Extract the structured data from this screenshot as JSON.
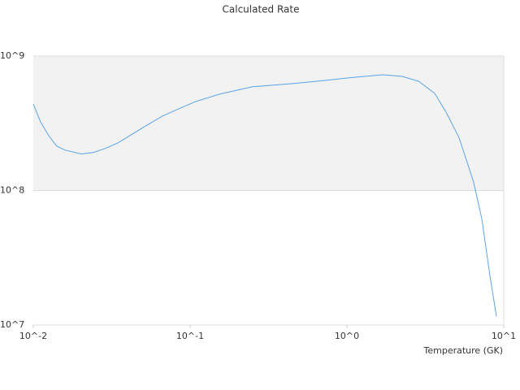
{
  "chart_data": {
    "type": "line",
    "title": "Calculated Rate",
    "xlabel": "Temperature (GK)",
    "x": [
      0.01,
      0.0111,
      0.0125,
      0.0141,
      0.0159,
      0.0202,
      0.0242,
      0.0289,
      0.0346,
      0.0414,
      0.0525,
      0.0667,
      0.0846,
      0.109,
      0.154,
      0.248,
      0.45,
      0.724,
      1.0,
      1.69,
      2.25,
      2.86,
      3.63,
      4.34,
      5.19,
      6.43,
      7.25,
      8.16,
      8.98
    ],
    "series": [
      {
        "name": "Rate",
        "color": "#5aa3e8",
        "values": [
          440000000,
          325000000,
          257000000,
          214000000,
          200000000,
          187000000,
          192000000,
          206000000,
          226000000,
          257000000,
          304000000,
          358000000,
          405000000,
          460000000,
          521000000,
          590000000,
          624000000,
          659000000,
          687000000,
          726000000,
          706000000,
          650000000,
          528000000,
          373000000,
          247000000,
          115000000,
          61500000,
          23300000,
          11600000
        ]
      }
    ],
    "xscale": "log",
    "yscale": "log",
    "bands": true,
    "xlim": [
      0.01,
      10
    ],
    "ylim": [
      10000000,
      1000000000
    ],
    "xticks": [
      {
        "value": 0.01,
        "label": "10^-2"
      },
      {
        "value": 0.1,
        "label": "10^-1"
      },
      {
        "value": 1,
        "label": "10^0"
      },
      {
        "value": 10,
        "label": "10^1"
      }
    ],
    "yticks": [
      {
        "value": 10000000,
        "label": "10^7"
      },
      {
        "value": 100000000,
        "label": "10^8"
      },
      {
        "value": 1000000000,
        "label": "10^9"
      }
    ]
  }
}
